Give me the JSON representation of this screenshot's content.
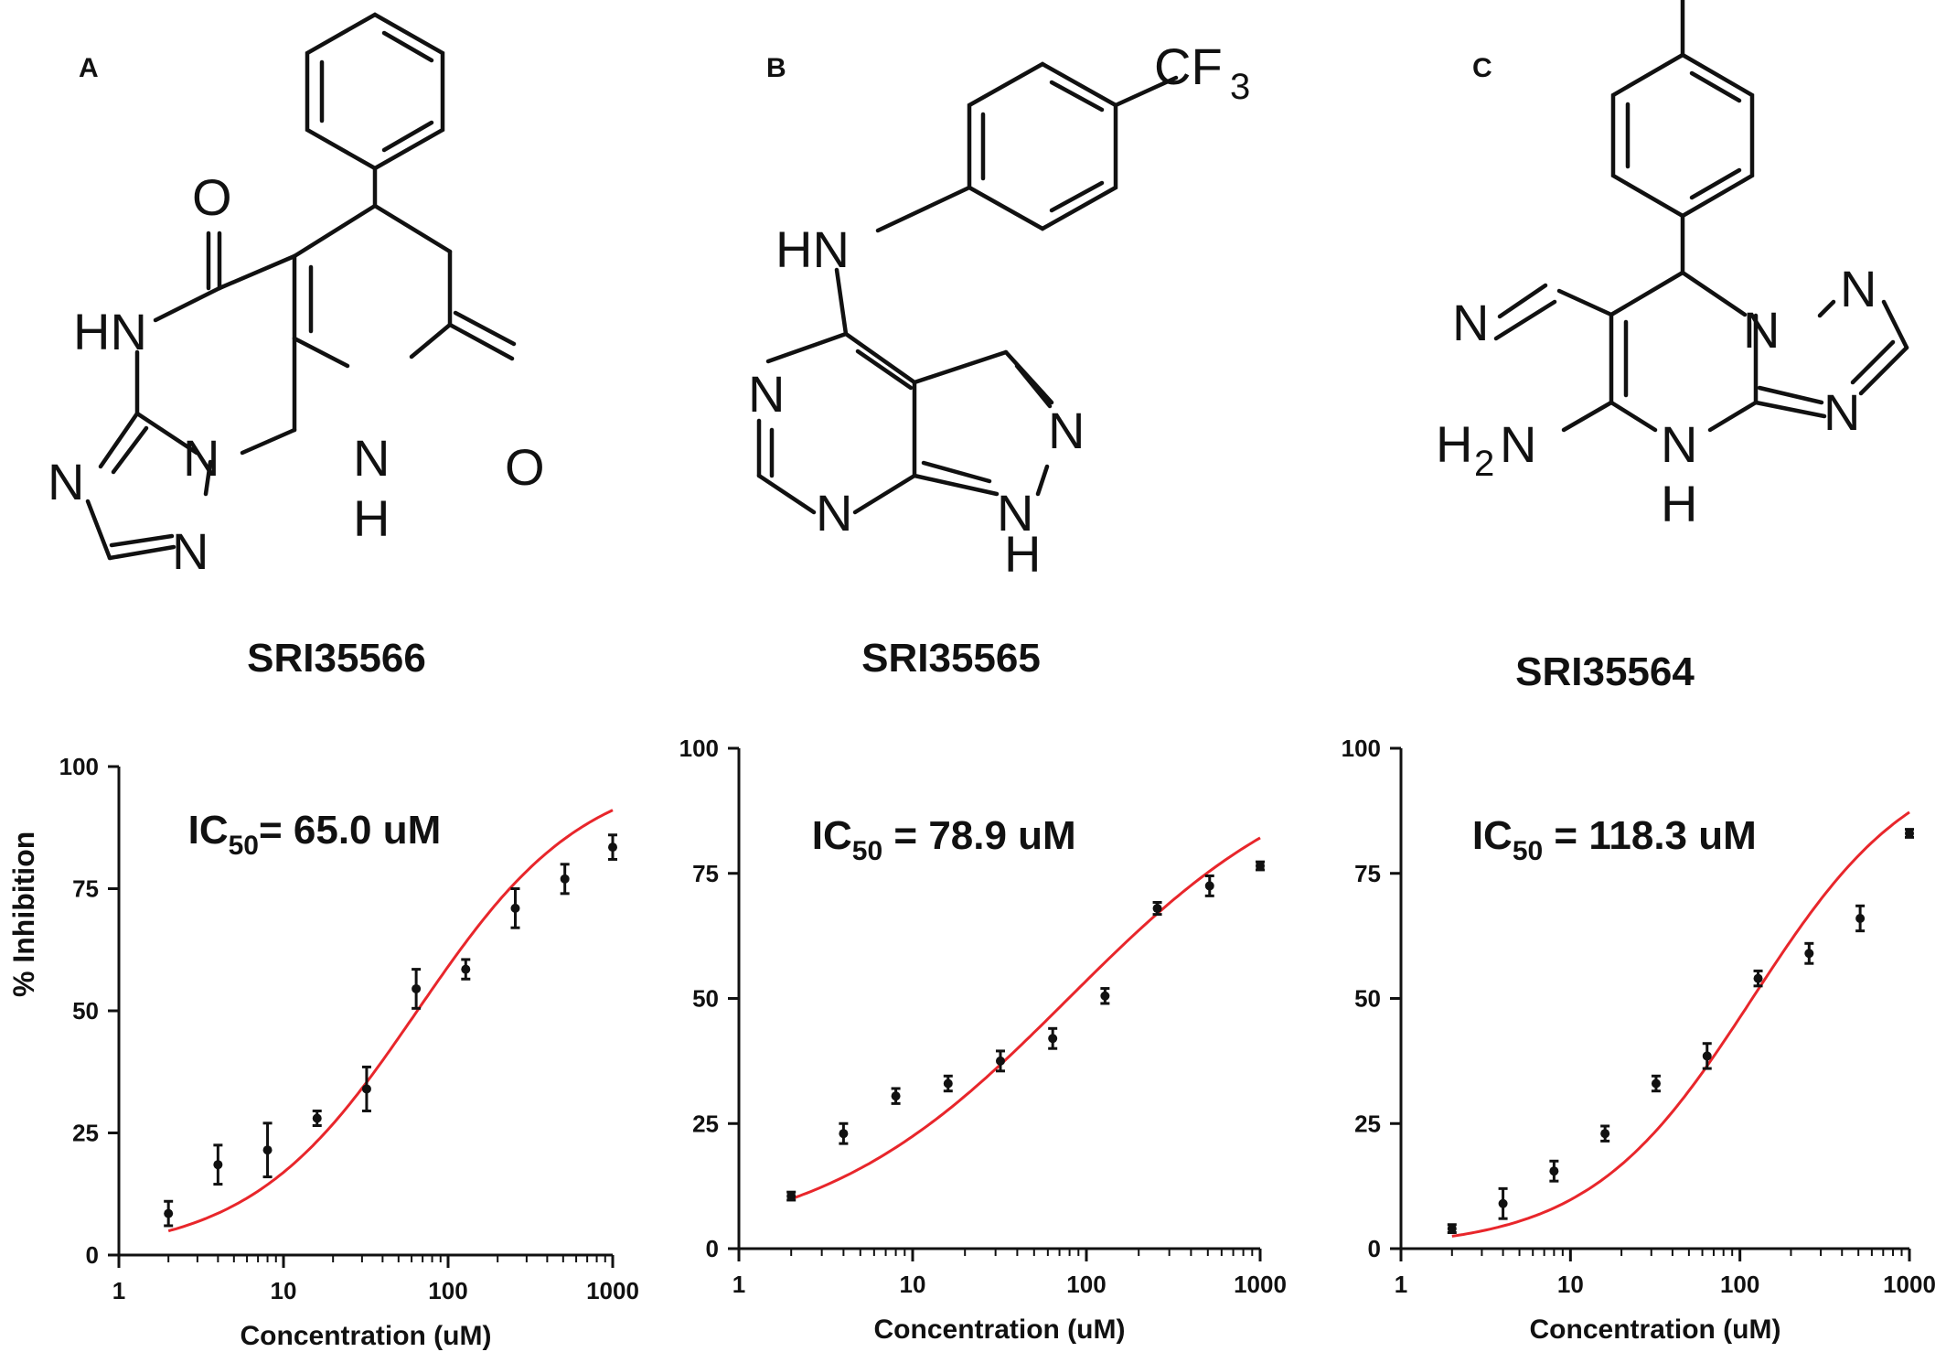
{
  "panels": [
    {
      "letter": "A",
      "compound": "SRI35566"
    },
    {
      "letter": "B",
      "compound": "SRI35565"
    },
    {
      "letter": "C",
      "compound": "SRI35564"
    }
  ],
  "molecule_labels": {
    "A": {
      "o1": "O",
      "hn": "HN",
      "n1": "N",
      "n2": "N",
      "n3": "N",
      "nh_n": "N",
      "nh_h": "H",
      "o2": "O"
    },
    "B": {
      "cf3": "CF",
      "cf3_sub": "3",
      "hn": "HN",
      "n1": "N",
      "n2": "N",
      "n3": "N",
      "n4": "N",
      "h": "H"
    },
    "C": {
      "n_nitrile": "N",
      "n1": "N",
      "n2": "N",
      "n3": "N",
      "h2n": "H",
      "h2n_sub": "2",
      "h2n_n": "N",
      "nh_n": "N",
      "nh_h": "H"
    }
  },
  "y_axis_title": "% Inhibition",
  "chart_data": [
    {
      "type": "scatter",
      "x": [
        2,
        4,
        8,
        16,
        32,
        64,
        128,
        256,
        512,
        1000
      ],
      "y": [
        8.5,
        18.5,
        21.5,
        28,
        34,
        54.5,
        58.5,
        71,
        77,
        83.5
      ],
      "error": [
        2.5,
        4,
        5.5,
        1.5,
        4.5,
        4,
        2,
        4,
        3,
        2.5
      ],
      "fit": {
        "ic50": 65.0,
        "hill": 0.85,
        "top": 100,
        "color": "#e8262b"
      },
      "ic50_label": {
        "prefix": "IC",
        "sub": "50",
        "suffix": "= 65.0 uM"
      },
      "xscale": "log",
      "xlim": [
        1,
        1000
      ],
      "ylim": [
        0,
        100
      ],
      "xticks": [
        "1",
        "10",
        "100",
        "1000"
      ],
      "yticks": [
        "0",
        "25",
        "50",
        "75",
        "100"
      ],
      "xlabel": "Concentration (uM)",
      "ylabel": "% Inhibition"
    },
    {
      "type": "scatter",
      "x": [
        2,
        4,
        8,
        16,
        32,
        64,
        128,
        256,
        512,
        1000
      ],
      "y": [
        10.5,
        23,
        30.5,
        33,
        37.5,
        42,
        50.5,
        68,
        72.5,
        76.5
      ],
      "error": [
        0.8,
        2,
        1.5,
        1.5,
        2,
        2,
        1.5,
        1.2,
        2,
        0.8
      ],
      "fit": {
        "ic50": 78.9,
        "hill": 0.6,
        "top": 100,
        "color": "#e8262b"
      },
      "ic50_label": {
        "prefix": "IC",
        "sub": "50",
        "suffix": " = 78.9 uM"
      },
      "xscale": "log",
      "xlim": [
        1,
        1000
      ],
      "ylim": [
        0,
        100
      ],
      "xticks": [
        "1",
        "10",
        "100",
        "1000"
      ],
      "yticks": [
        "0",
        "25",
        "50",
        "75",
        "100"
      ],
      "xlabel": "Concentration (uM)",
      "ylabel": ""
    },
    {
      "type": "scatter",
      "x": [
        2,
        4,
        8,
        16,
        32,
        64,
        128,
        256,
        512,
        1000
      ],
      "y": [
        4,
        9,
        15.5,
        23,
        33,
        38.5,
        54,
        59,
        66,
        83
      ],
      "error": [
        0.8,
        3,
        2,
        1.5,
        1.5,
        2.5,
        1.5,
        2,
        2.5,
        0.8
      ],
      "fit": {
        "ic50": 118.3,
        "hill": 0.9,
        "top": 100,
        "color": "#e8262b"
      },
      "ic50_label": {
        "prefix": "IC",
        "sub": "50",
        "suffix": " = 118.3 uM"
      },
      "xscale": "log",
      "xlim": [
        1,
        1000
      ],
      "ylim": [
        0,
        100
      ],
      "xticks": [
        "1",
        "10",
        "100",
        "1000"
      ],
      "yticks": [
        "0",
        "25",
        "50",
        "75",
        "100"
      ],
      "xlabel": "Concentration (uM)",
      "ylabel": ""
    }
  ]
}
